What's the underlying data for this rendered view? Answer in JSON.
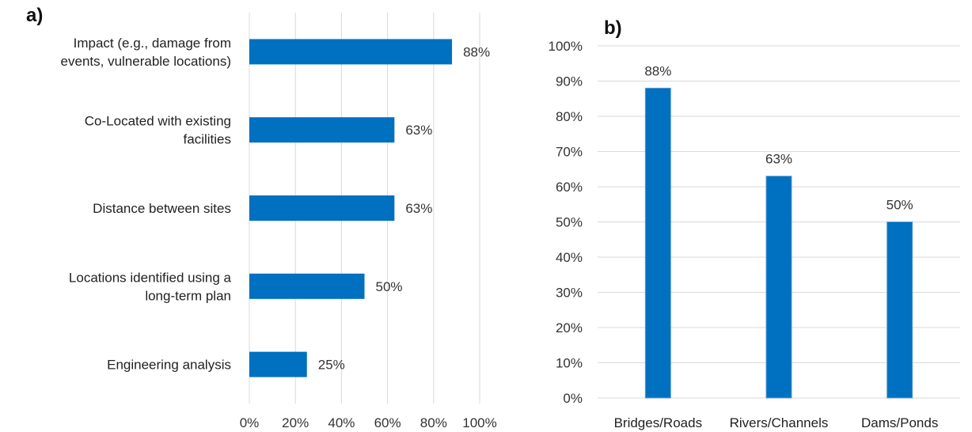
{
  "chart_data": [
    {
      "panel_label": "a)",
      "type": "bar",
      "orientation": "horizontal",
      "categories": [
        [
          "Impact (e.g., damage from",
          "events, vulnerable locations)"
        ],
        [
          "Co-Located with existing",
          "facilities"
        ],
        [
          "Distance between sites"
        ],
        [
          "Locations identified using a",
          "long-term plan"
        ],
        [
          "Engineering analysis"
        ]
      ],
      "values": [
        88,
        63,
        63,
        50,
        25
      ],
      "data_labels": [
        "88%",
        "63%",
        "63%",
        "50%",
        "25%"
      ],
      "xlim": [
        0,
        100
      ],
      "xticks": [
        "0%",
        "20%",
        "40%",
        "60%",
        "80%",
        "100%"
      ],
      "grid": true,
      "bar_color": "#0070c0"
    },
    {
      "panel_label": "b)",
      "type": "bar",
      "orientation": "vertical",
      "categories": [
        "Bridges/Roads",
        "Rivers/Channels",
        "Dams/Ponds"
      ],
      "values": [
        88,
        63,
        50
      ],
      "data_labels": [
        "88%",
        "63%",
        "50%"
      ],
      "ylim": [
        0,
        100
      ],
      "yticks": [
        "0%",
        "10%",
        "20%",
        "30%",
        "40%",
        "50%",
        "60%",
        "70%",
        "80%",
        "90%",
        "100%"
      ],
      "grid": true,
      "bar_color": "#0070c0"
    }
  ]
}
